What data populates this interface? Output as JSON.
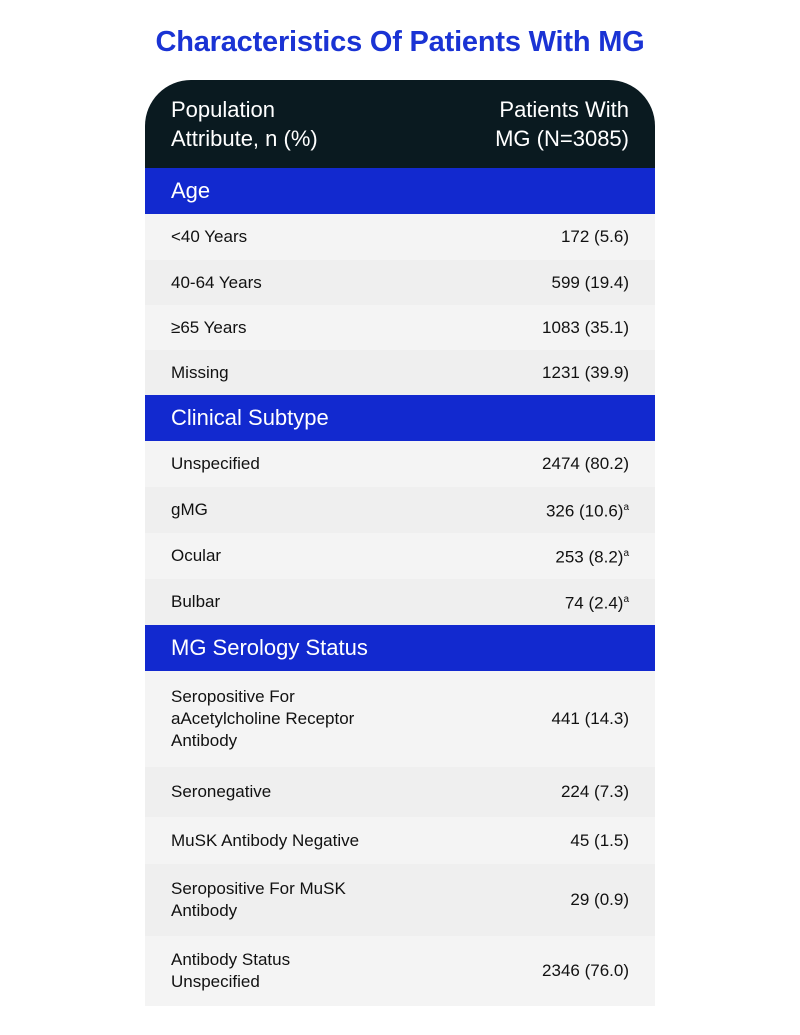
{
  "title": "Characteristics Of Patients With MG",
  "header": {
    "col1_line1": "Population",
    "col1_line2": "Attribute, n (%)",
    "col2_line1": "Patients With",
    "col2_line2": "MG (N=3085)"
  },
  "colors": {
    "title": "#1a33d4",
    "header_bg": "#0a1a20",
    "section_bg": "#1229cf"
  },
  "sections": [
    {
      "label": "Age",
      "rows": [
        {
          "label": "<40 Years",
          "value": "172 (5.6)",
          "note": ""
        },
        {
          "label": "40-64 Years",
          "value": "599 (19.4)",
          "note": ""
        },
        {
          "label": "≥65 Years",
          "value": "1083 (35.1)",
          "note": ""
        },
        {
          "label": "Missing",
          "value": "1231 (39.9)",
          "note": ""
        }
      ]
    },
    {
      "label": "Clinical Subtype",
      "rows": [
        {
          "label": "Unspecified",
          "value": "2474 (80.2)",
          "note": ""
        },
        {
          "label": "gMG",
          "value": "326 (10.6)",
          "note": "a"
        },
        {
          "label": "Ocular",
          "value": "253 (8.2)",
          "note": "a"
        },
        {
          "label": "Bulbar",
          "value": "74 (2.4)",
          "note": "a"
        }
      ]
    },
    {
      "label": "MG Serology Status",
      "rows": [
        {
          "label": "Seropositive For aAcetylcholine Receptor Antibody",
          "value": "441 (14.3)",
          "note": ""
        },
        {
          "label": "Seronegative",
          "value": "224 (7.3)",
          "note": ""
        },
        {
          "label": "MuSK Antibody Negative",
          "value": "45 (1.5)",
          "note": ""
        },
        {
          "label": "Seropositive For MuSK Antibody",
          "value": "29 (0.9)",
          "note": ""
        },
        {
          "label": "Antibody Status Unspecified",
          "value": "2346 (76.0)",
          "note": ""
        }
      ]
    }
  ]
}
